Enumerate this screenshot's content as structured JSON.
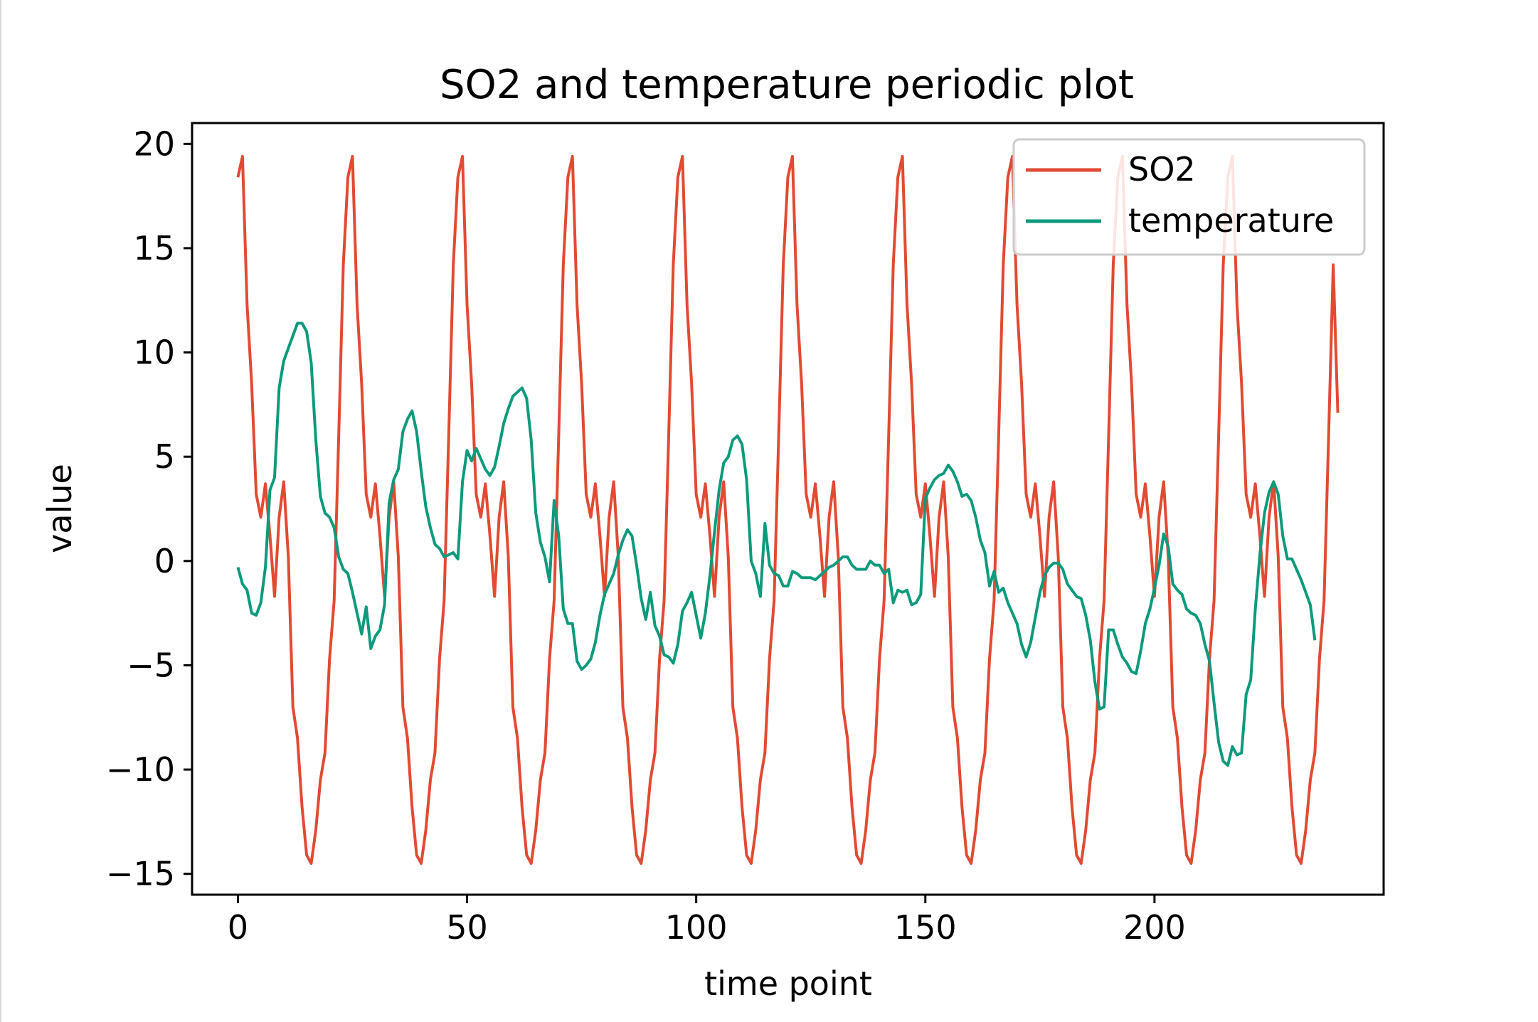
{
  "chart_data": {
    "type": "line",
    "title": "SO2 and temperature periodic plot",
    "xlabel": "time point",
    "ylabel": "value",
    "xlim": [
      -10,
      250
    ],
    "ylim": [
      -16,
      21
    ],
    "xticks": [
      0,
      50,
      100,
      150,
      200
    ],
    "yticks": [
      -15,
      -10,
      -5,
      0,
      5,
      10,
      15,
      20
    ],
    "xtick_labels": [
      "0",
      "50",
      "100",
      "150",
      "200"
    ],
    "ytick_labels": [
      "−15",
      "−10",
      "−5",
      "0",
      "5",
      "10",
      "15",
      "20"
    ],
    "legend": {
      "location": "top-right",
      "entries": [
        "SO2",
        "temperature"
      ]
    },
    "series": [
      {
        "name": "SO2",
        "color": "#e24a33",
        "period": 24,
        "repeats": 10,
        "cycle_values": [
          18.4,
          19.4,
          12.3,
          8.5,
          3.2,
          2.1,
          3.7,
          1.2,
          -1.7,
          2.1,
          3.8,
          0.2,
          -7.0,
          -8.5,
          -11.8,
          -14.1,
          -14.5,
          -12.9,
          -10.5,
          -9.2,
          -4.7,
          -1.9,
          6.0,
          14.2
        ],
        "last_value": 7.1
      },
      {
        "name": "temperature",
        "color": "#0d9a7c",
        "x_start": 0,
        "values": [
          -0.3,
          -1.1,
          -1.4,
          -2.5,
          -2.6,
          -2.0,
          -0.3,
          3.4,
          4.0,
          8.3,
          9.6,
          10.2,
          10.8,
          11.4,
          11.4,
          11.0,
          9.5,
          5.8,
          3.1,
          2.3,
          2.1,
          1.6,
          0.2,
          -0.4,
          -0.6,
          -1.5,
          -2.5,
          -3.5,
          -2.2,
          -4.2,
          -3.6,
          -3.3,
          -2.1,
          2.8,
          3.9,
          4.4,
          6.2,
          6.8,
          7.2,
          6.2,
          4.3,
          2.6,
          1.6,
          0.8,
          0.6,
          0.2,
          0.3,
          0.4,
          0.1,
          3.8,
          5.3,
          4.8,
          5.4,
          4.9,
          4.4,
          4.1,
          4.5,
          5.5,
          6.6,
          7.3,
          7.9,
          8.1,
          8.3,
          7.8,
          5.8,
          2.3,
          0.9,
          0.2,
          -1.0,
          2.9,
          1.2,
          -2.3,
          -3.0,
          -3.0,
          -4.8,
          -5.2,
          -5.0,
          -4.7,
          -3.9,
          -2.6,
          -1.6,
          -1.1,
          -0.6,
          0.3,
          1.0,
          1.5,
          1.2,
          -0.2,
          -1.8,
          -2.8,
          -1.5,
          -3.1,
          -3.6,
          -4.5,
          -4.6,
          -4.9,
          -4.0,
          -2.4,
          -2.0,
          -1.5,
          -2.6,
          -3.7,
          -2.5,
          -0.7,
          1.4,
          3.4,
          4.7,
          5.0,
          5.8,
          6.0,
          5.6,
          3.9,
          0.0,
          -0.6,
          -1.7,
          1.8,
          -0.2,
          -0.6,
          -0.7,
          -1.2,
          -1.2,
          -0.5,
          -0.6,
          -0.8,
          -0.8,
          -0.8,
          -0.9,
          -0.7,
          -0.5,
          -0.3,
          -0.2,
          0.0,
          0.2,
          0.2,
          -0.2,
          -0.4,
          -0.4,
          -0.4,
          0.0,
          -0.2,
          -0.2,
          -0.6,
          -0.4,
          -2.0,
          -1.4,
          -1.5,
          -1.4,
          -2.1,
          -2.0,
          -1.6,
          3.0,
          3.5,
          3.9,
          4.1,
          4.2,
          4.6,
          4.3,
          3.8,
          3.1,
          3.2,
          2.9,
          2.1,
          1.0,
          0.4,
          -1.2,
          -0.5,
          -1.5,
          -1.3,
          -2.0,
          -2.5,
          -3.0,
          -4.0,
          -4.6,
          -3.9,
          -2.7,
          -1.5,
          -0.7,
          -0.3,
          -0.1,
          -0.1,
          -0.4,
          -1.1,
          -1.4,
          -1.7,
          -1.8,
          -2.6,
          -3.8,
          -5.8,
          -7.1,
          -7.0,
          -3.3,
          -3.3,
          -4.0,
          -4.6,
          -4.9,
          -5.3,
          -5.4,
          -4.3,
          -3.0,
          -2.3,
          -1.3,
          -0.2,
          1.3,
          0.7,
          -1.1,
          -1.4,
          -1.6,
          -2.3,
          -2.5,
          -2.6,
          -3.0,
          -4.0,
          -4.8,
          -6.8,
          -8.7,
          -9.6,
          -9.8,
          -8.9,
          -9.3,
          -9.2,
          -6.4,
          -5.7,
          -2.3,
          0.3,
          2.3,
          3.3,
          3.8,
          3.2,
          1.2,
          0.1,
          0.1,
          -0.4,
          -0.9,
          -1.5,
          -2.1,
          -3.8
        ]
      }
    ]
  }
}
